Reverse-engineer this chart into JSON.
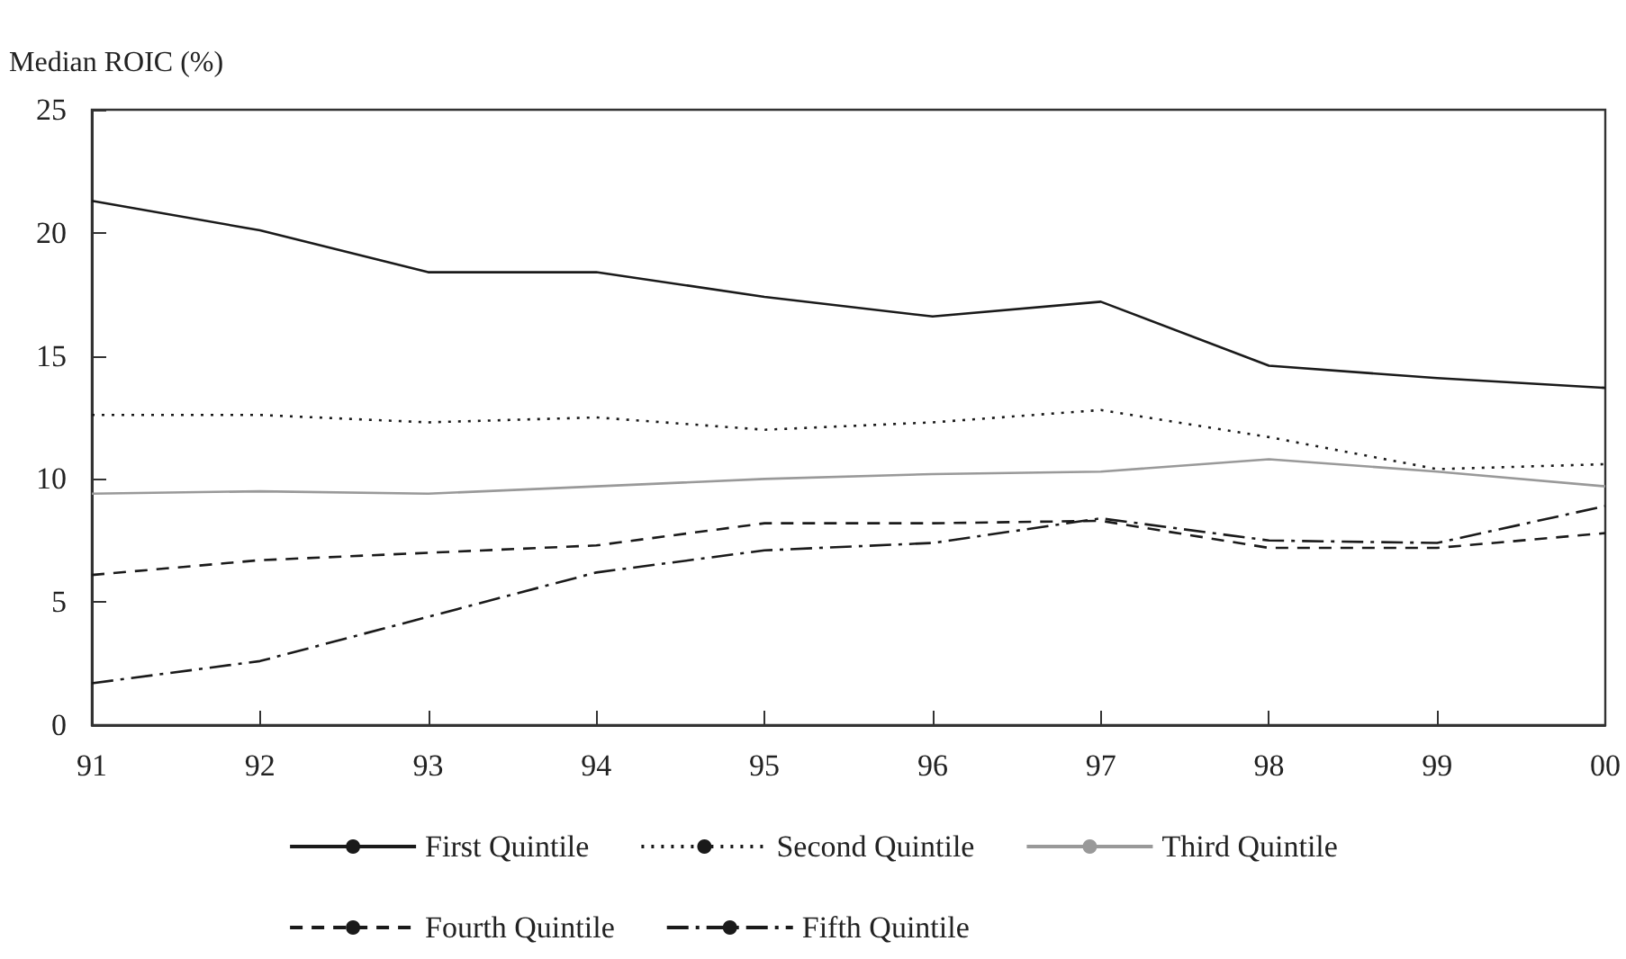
{
  "chart_data": {
    "type": "line",
    "ylabel": "Median ROIC (%)",
    "categories": [
      "91",
      "92",
      "93",
      "94",
      "95",
      "96",
      "97",
      "98",
      "99",
      "00"
    ],
    "series": [
      {
        "name": "First Quintile",
        "color": "#1a1a1a",
        "line_style": "solid",
        "values": [
          21.3,
          20.1,
          18.4,
          18.4,
          17.4,
          16.6,
          17.2,
          14.6,
          14.1,
          13.7
        ]
      },
      {
        "name": "Second Quintile",
        "color": "#1a1a1a",
        "line_style": "dotted",
        "values": [
          12.6,
          12.6,
          12.3,
          12.5,
          12.0,
          12.3,
          12.8,
          11.7,
          10.4,
          10.6
        ]
      },
      {
        "name": "Third Quintile",
        "color": "#999999",
        "line_style": "solid",
        "values": [
          9.4,
          9.5,
          9.4,
          9.7,
          10.0,
          10.2,
          10.3,
          10.8,
          10.3,
          9.7
        ]
      },
      {
        "name": "Fourth Quintile",
        "color": "#1a1a1a",
        "line_style": "dashed",
        "values": [
          6.1,
          6.7,
          7.0,
          7.3,
          8.2,
          8.2,
          8.3,
          7.2,
          7.2,
          7.8
        ]
      },
      {
        "name": "Fifth Quintile",
        "color": "#1a1a1a",
        "line_style": "dashdot",
        "values": [
          1.7,
          2.6,
          4.4,
          6.2,
          7.1,
          7.4,
          8.4,
          7.5,
          7.4,
          8.9
        ]
      }
    ],
    "ylim": [
      0,
      25
    ],
    "yticks": [
      0,
      5,
      10,
      15,
      20,
      25
    ],
    "grid": false,
    "legend": "bottom",
    "marker": "none"
  }
}
